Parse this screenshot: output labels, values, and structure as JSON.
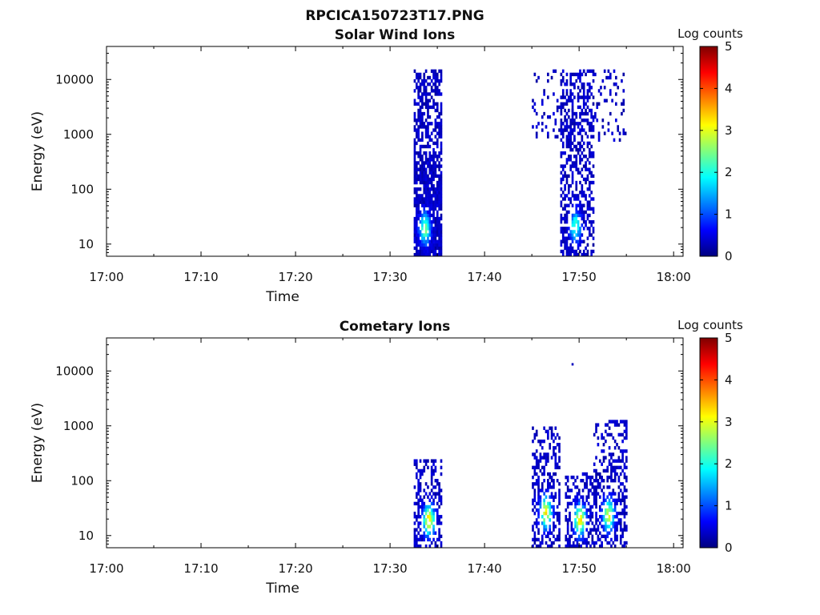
{
  "figure_title": "RPCICA150723T17.PNG",
  "colormap": [
    "#00007f",
    "#0000ff",
    "#007fff",
    "#00ffff",
    "#7fff7f",
    "#ffff00",
    "#ff7f00",
    "#ff0000",
    "#7f0000"
  ],
  "chart_data": [
    {
      "type": "heatmap",
      "title": "Solar Wind Ions",
      "xlabel": "Time",
      "ylabel": "Energy (eV)",
      "x_range": [
        "17:00",
        "18:01"
      ],
      "y_range": [
        6,
        40000
      ],
      "y_scale": "log",
      "x_ticks": [
        "17:00",
        "17:10",
        "17:20",
        "17:30",
        "17:40",
        "17:50",
        "18:00"
      ],
      "y_ticks": [
        {
          "value": 10,
          "label": "10"
        },
        {
          "value": 100,
          "label": "100"
        },
        {
          "value": 1000,
          "label": "1000"
        },
        {
          "value": 10000,
          "label": "10000"
        }
      ],
      "colorbar": {
        "label": "Log counts",
        "min": 0,
        "max": 5,
        "ticks": [
          "0",
          "1",
          "2",
          "3",
          "4",
          "5"
        ]
      },
      "bursts": [
        {
          "t_start": "17:32.5",
          "t_end": "17:35.5",
          "e_min": 6,
          "e_max": 15000,
          "density": 0.85,
          "peaks": [
            {
              "t": "17:33.6",
              "e": 18,
              "level": 2.3
            }
          ]
        },
        {
          "t_start": "17:45.0",
          "t_end": "17:55.0",
          "e_min": 700,
          "e_max": 15000,
          "density": 0.18
        },
        {
          "t_start": "17:48.0",
          "t_end": "17:51.5",
          "e_min": 6,
          "e_max": 15000,
          "density": 0.55,
          "peaks": [
            {
              "t": "17:49.5",
              "e": 20,
              "level": 2.0
            }
          ]
        }
      ]
    },
    {
      "type": "heatmap",
      "title": "Cometary Ions",
      "xlabel": "Time",
      "ylabel": "Energy (eV)",
      "x_range": [
        "17:00",
        "18:01"
      ],
      "y_range": [
        6,
        40000
      ],
      "y_scale": "log",
      "x_ticks": [
        "17:00",
        "17:10",
        "17:20",
        "17:30",
        "17:40",
        "17:50",
        "18:00"
      ],
      "y_ticks": [
        {
          "value": 10,
          "label": "10"
        },
        {
          "value": 100,
          "label": "100"
        },
        {
          "value": 1000,
          "label": "1000"
        },
        {
          "value": 10000,
          "label": "10000"
        }
      ],
      "colorbar": {
        "label": "Log counts",
        "min": 0,
        "max": 5,
        "ticks": [
          "0",
          "1",
          "2",
          "3",
          "4",
          "5"
        ]
      },
      "bursts": [
        {
          "t_start": "17:32.5",
          "t_end": "17:35.5",
          "e_min": 6,
          "e_max": 220,
          "density": 0.6,
          "peaks": [
            {
              "t": "17:34.0",
              "e": 18,
              "level": 3.1
            }
          ]
        },
        {
          "t_start": "17:45.0",
          "t_end": "17:48.0",
          "e_min": 6,
          "e_max": 900,
          "density": 0.5,
          "peaks": [
            {
              "t": "17:46.4",
              "e": 25,
              "level": 3.0
            }
          ]
        },
        {
          "t_start": "17:48.5",
          "t_end": "17:51.5",
          "e_min": 6,
          "e_max": 130,
          "density": 0.55,
          "peaks": [
            {
              "t": "17:50.0",
              "e": 18,
              "level": 3.0
            }
          ]
        },
        {
          "t_start": "17:51.5",
          "t_end": "17:55.0",
          "e_min": 6,
          "e_max": 1200,
          "density": 0.5,
          "peaks": [
            {
              "t": "17:53.0",
              "e": 22,
              "level": 2.8
            }
          ]
        }
      ],
      "points": [
        {
          "t": "17:49.2",
          "e": 13000,
          "level": 0.3
        }
      ]
    }
  ]
}
